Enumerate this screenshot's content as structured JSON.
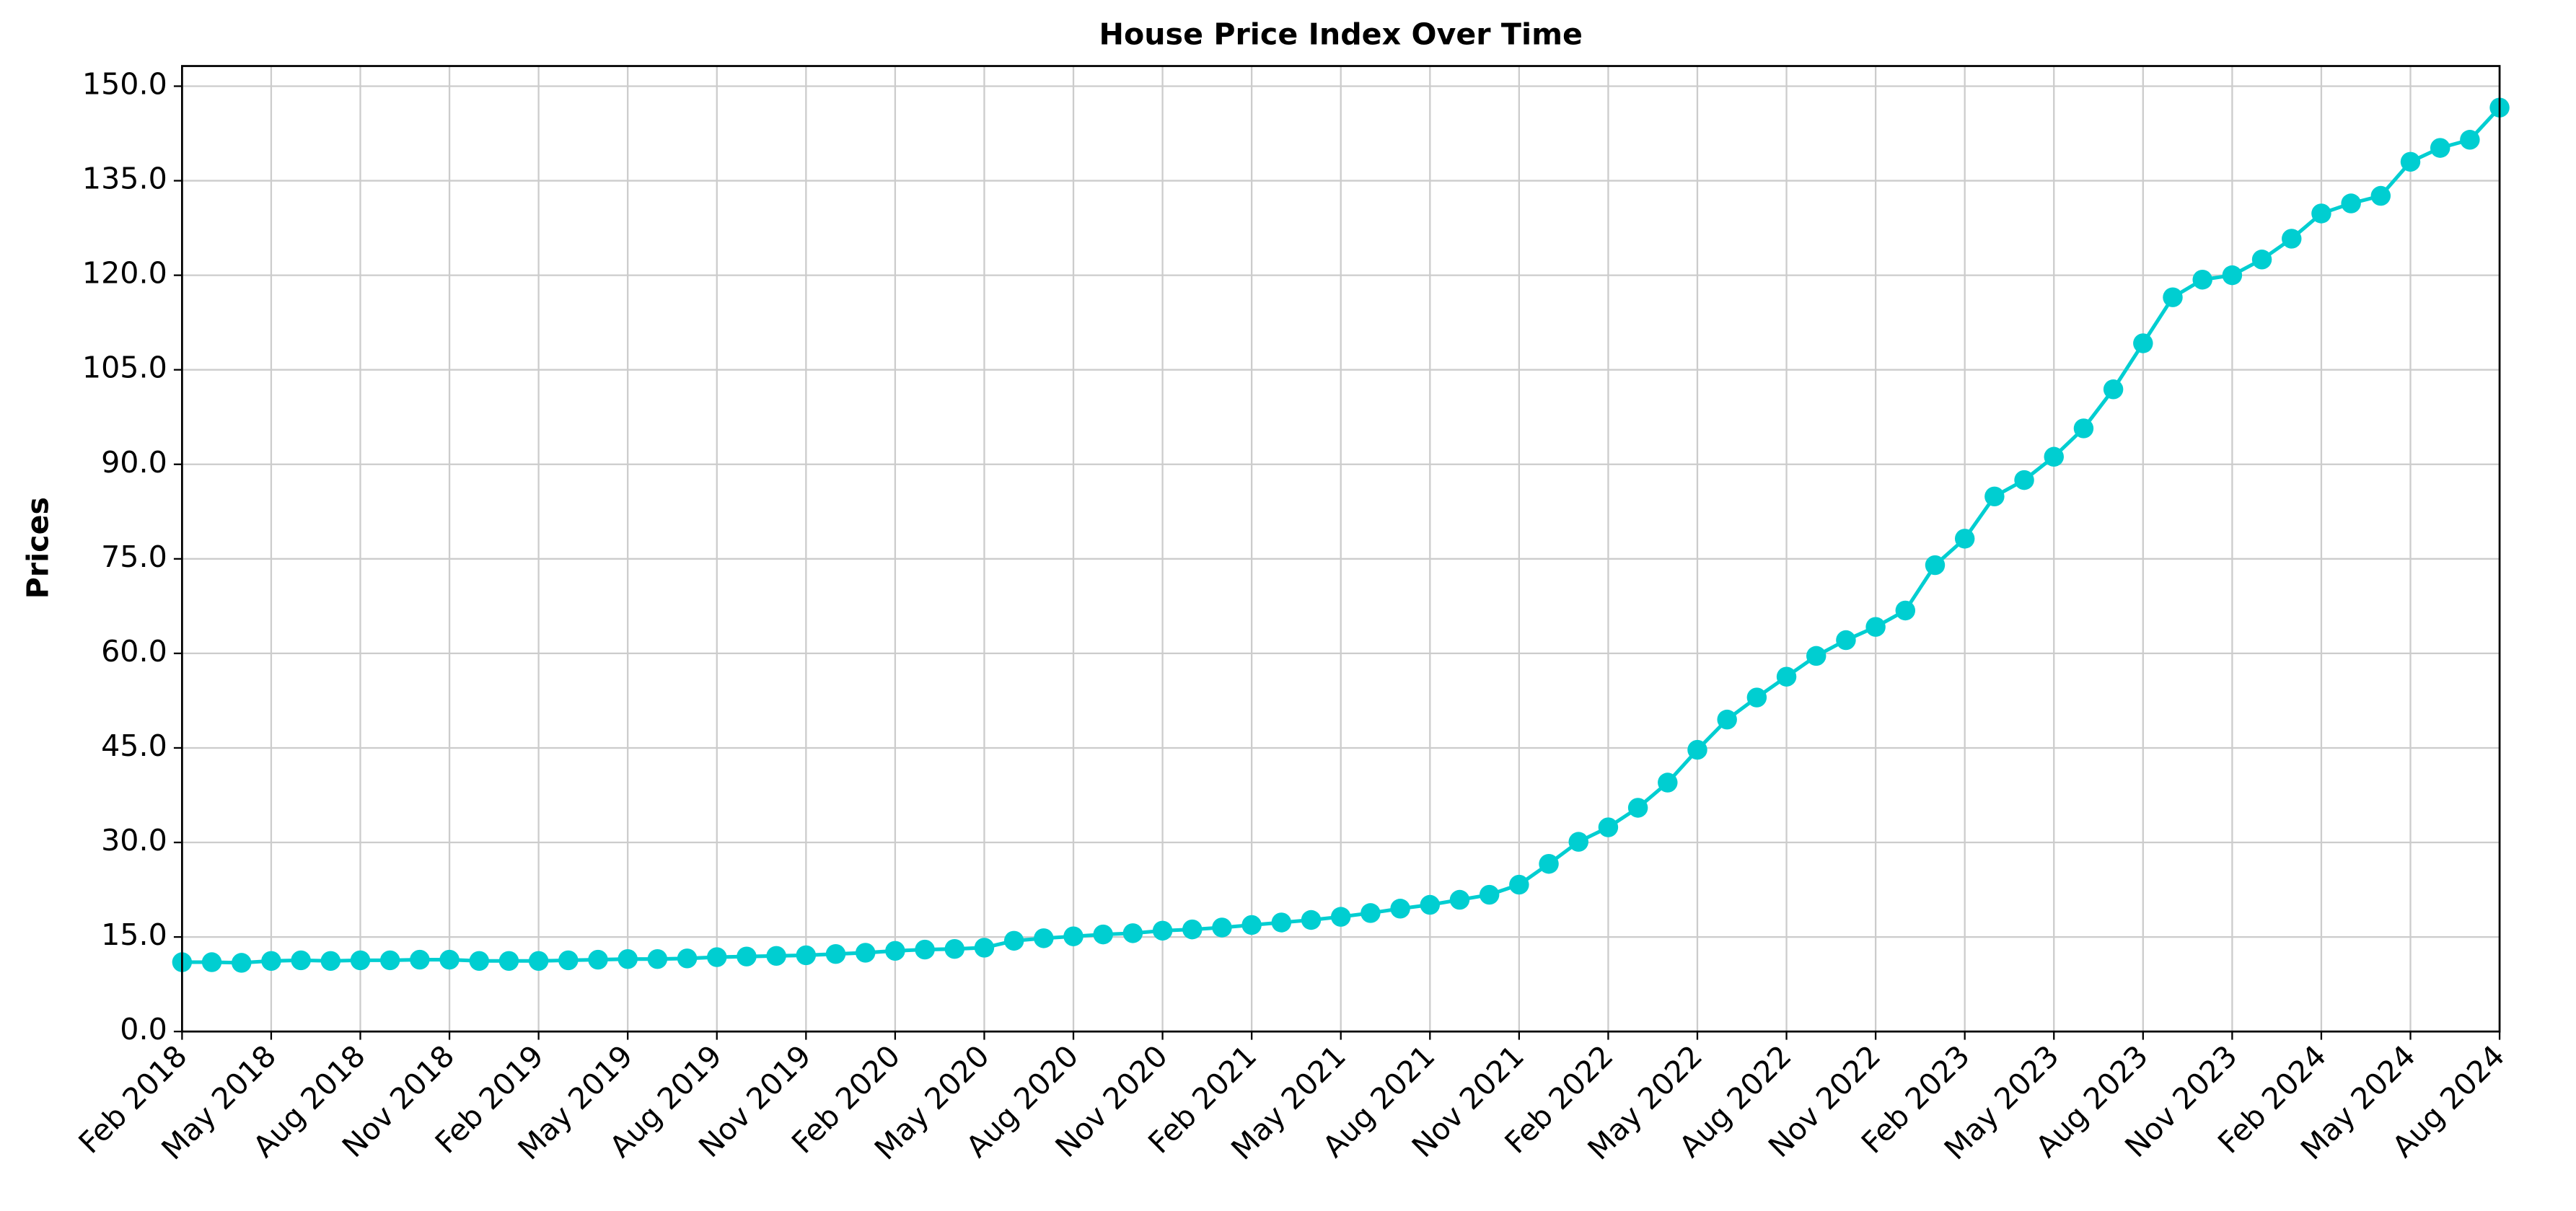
{
  "chart_data": {
    "type": "line",
    "title": "House Price Index Over Time",
    "y_label": "Prices",
    "categories": [
      "Feb 2018",
      null,
      null,
      "May 2018",
      null,
      null,
      "Aug 2018",
      null,
      null,
      "Nov 2018",
      null,
      null,
      "Feb 2019",
      null,
      null,
      "May 2019",
      null,
      null,
      "Aug 2019",
      null,
      null,
      "Nov 2019",
      null,
      null,
      "Feb 2020",
      null,
      null,
      "May 2020",
      null,
      null,
      "Aug 2020",
      null,
      null,
      "Nov 2020",
      null,
      null,
      "Feb 2021",
      null,
      null,
      "May 2021",
      null,
      null,
      "Aug 2021",
      null,
      null,
      "Nov 2021",
      null,
      null,
      "Feb 2022",
      null,
      null,
      "May 2022",
      null,
      null,
      "Aug 2022",
      null,
      null,
      "Nov 2022",
      null,
      null,
      "Feb 2023",
      null,
      null,
      "May 2023",
      null,
      null,
      "Aug 2023",
      null,
      null,
      "Nov 2023",
      null,
      null,
      "Feb 2024",
      null,
      null,
      "May 2024",
      null,
      null,
      "Aug 2024"
    ],
    "series": [
      {
        "name": "House Price Index",
        "color": "#00ced1",
        "values": [
          11.0,
          11.0,
          10.9,
          11.2,
          11.3,
          11.2,
          11.3,
          11.3,
          11.4,
          11.4,
          11.2,
          11.2,
          11.2,
          11.3,
          11.4,
          11.5,
          11.5,
          11.6,
          11.8,
          11.9,
          12.0,
          12.1,
          12.3,
          12.5,
          12.8,
          13.0,
          13.1,
          13.3,
          14.4,
          14.8,
          15.1,
          15.4,
          15.6,
          16.0,
          16.2,
          16.5,
          16.9,
          17.3,
          17.7,
          18.2,
          18.8,
          19.5,
          20.1,
          20.9,
          21.7,
          23.3,
          26.6,
          30.1,
          32.4,
          35.5,
          39.5,
          44.7,
          49.5,
          53.0,
          56.3,
          59.6,
          62.1,
          64.2,
          66.8,
          74.0,
          78.2,
          84.9,
          87.5,
          91.2,
          95.7,
          101.9,
          109.2,
          116.5,
          119.3,
          120.0,
          122.5,
          125.8,
          129.8,
          131.4,
          132.6,
          138.0,
          140.2,
          141.5,
          146.6
        ]
      }
    ],
    "ylim": [
      0,
      153.2
    ],
    "yticks": [
      {
        "value": 0,
        "label": "0.0"
      },
      {
        "value": 15,
        "label": "15.0"
      },
      {
        "value": 30,
        "label": "30.0"
      },
      {
        "value": 45,
        "label": "45.0"
      },
      {
        "value": 60,
        "label": "60.0"
      },
      {
        "value": 75,
        "label": "75.0"
      },
      {
        "value": 90,
        "label": "90.0"
      },
      {
        "value": 105,
        "label": "105.0"
      },
      {
        "value": 120,
        "label": "120.0"
      },
      {
        "value": 135,
        "label": "135.0"
      },
      {
        "value": 150,
        "label": "150.0"
      }
    ],
    "grid": true
  }
}
